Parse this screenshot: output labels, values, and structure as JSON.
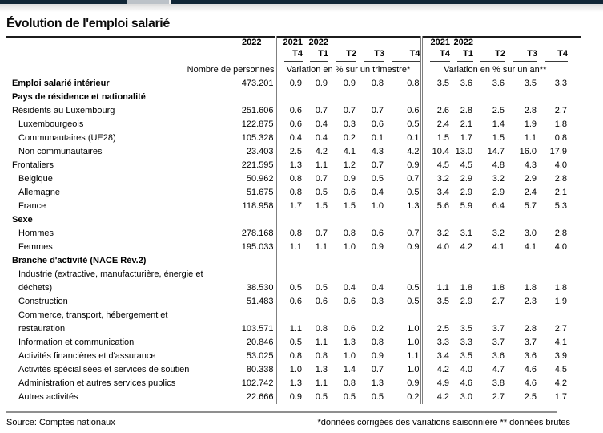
{
  "window": {
    "topbar": {
      "navy_color": "#102636",
      "gray_segment_color": "#bcc2c8"
    }
  },
  "page": {
    "title": "Évolution de l'emploi salarié"
  },
  "table": {
    "first_col": {
      "year": "2022",
      "caption": "Nombre de personnes"
    },
    "group_trimestre": {
      "years": [
        "2021",
        "2022"
      ],
      "quarters": [
        "T4",
        "T1",
        "T2",
        "T3",
        "T4"
      ],
      "caption": "Variation en % sur un trimestre*"
    },
    "group_an": {
      "years": [
        "2021",
        "2022"
      ],
      "quarters": [
        "T4",
        "T1",
        "T2",
        "T3",
        "T4"
      ],
      "caption": "Variation en % sur un an**"
    },
    "rows": [
      {
        "label": "Emploi salarié intérieur",
        "bold": true,
        "indent": 0,
        "number": "473.201",
        "q": [
          "0.9",
          "0.9",
          "0.9",
          "0.8",
          "0.8"
        ],
        "y": [
          "3.5",
          "3.6",
          "3.6",
          "3.5",
          "3.3"
        ]
      },
      {
        "label": "Pays de résidence et nationalité",
        "bold": true,
        "indent": 0
      },
      {
        "label": "Résidents au Luxembourg",
        "indent": 0,
        "number": "251.606",
        "q": [
          "0.6",
          "0.7",
          "0.7",
          "0.7",
          "0.6"
        ],
        "y": [
          "2.6",
          "2.8",
          "2.5",
          "2.8",
          "2.7"
        ]
      },
      {
        "label": "Luxembourgeois",
        "indent": 1,
        "number": "122.875",
        "q": [
          "0.6",
          "0.4",
          "0.3",
          "0.6",
          "0.5"
        ],
        "y": [
          "2.4",
          "2.1",
          "1.4",
          "1.9",
          "1.8"
        ]
      },
      {
        "label": "Communautaires (UE28)",
        "indent": 1,
        "number": "105.328",
        "q": [
          "0.4",
          "0.4",
          "0.2",
          "0.1",
          "0.1"
        ],
        "y": [
          "1.5",
          "1.7",
          "1.5",
          "1.1",
          "0.8"
        ]
      },
      {
        "label": "Non communautaires",
        "indent": 1,
        "number": "23.403",
        "q": [
          "2.5",
          "4.2",
          "4.1",
          "4.3",
          "4.2"
        ],
        "y": [
          "10.4",
          "13.0",
          "14.7",
          "16.0",
          "17.9"
        ]
      },
      {
        "label": "Frontaliers",
        "indent": 0,
        "number": "221.595",
        "q": [
          "1.3",
          "1.1",
          "1.2",
          "0.7",
          "0.9"
        ],
        "y": [
          "4.5",
          "4.5",
          "4.8",
          "4.3",
          "4.0"
        ]
      },
      {
        "label": "Belgique",
        "indent": 1,
        "number": "50.962",
        "q": [
          "0.8",
          "0.7",
          "0.9",
          "0.5",
          "0.7"
        ],
        "y": [
          "3.2",
          "2.9",
          "3.2",
          "2.9",
          "2.8"
        ]
      },
      {
        "label": "Allemagne",
        "indent": 1,
        "number": "51.675",
        "q": [
          "0.8",
          "0.5",
          "0.6",
          "0.4",
          "0.5"
        ],
        "y": [
          "3.4",
          "2.9",
          "2.9",
          "2.4",
          "2.1"
        ]
      },
      {
        "label": "France",
        "indent": 1,
        "number": "118.958",
        "q": [
          "1.7",
          "1.5",
          "1.5",
          "1.0",
          "1.3"
        ],
        "y": [
          "5.6",
          "5.9",
          "6.4",
          "5.7",
          "5.3"
        ]
      },
      {
        "label": "Sexe",
        "bold": true,
        "indent": 0
      },
      {
        "label": "Hommes",
        "indent": 1,
        "number": "278.168",
        "q": [
          "0.8",
          "0.7",
          "0.8",
          "0.6",
          "0.7"
        ],
        "y": [
          "3.2",
          "3.1",
          "3.2",
          "3.0",
          "2.8"
        ]
      },
      {
        "label": "Femmes",
        "indent": 1,
        "number": "195.033",
        "q": [
          "1.1",
          "1.1",
          "1.0",
          "0.9",
          "0.9"
        ],
        "y": [
          "4.0",
          "4.2",
          "4.1",
          "4.1",
          "4.0"
        ]
      },
      {
        "label": "Branche d'activité (NACE Rév.2)",
        "bold": true,
        "indent": 0
      },
      {
        "label": "Industrie (extractive, manufacturière, énergie et",
        "indent": 1,
        "cont": true
      },
      {
        "label": "déchets)",
        "indent": 1,
        "number": "38.530",
        "q": [
          "0.5",
          "0.5",
          "0.4",
          "0.4",
          "0.5"
        ],
        "y": [
          "1.1",
          "1.8",
          "1.8",
          "1.8",
          "1.8"
        ]
      },
      {
        "label": "Construction",
        "indent": 1,
        "number": "51.483",
        "q": [
          "0.6",
          "0.6",
          "0.6",
          "0.3",
          "0.5"
        ],
        "y": [
          "3.5",
          "2.9",
          "2.7",
          "2.3",
          "1.9"
        ]
      },
      {
        "label": "Commerce, transport, hébergement et",
        "indent": 1,
        "cont": true
      },
      {
        "label": "restauration",
        "indent": 1,
        "number": "103.571",
        "q": [
          "1.1",
          "0.8",
          "0.6",
          "0.2",
          "1.0"
        ],
        "y": [
          "2.5",
          "3.5",
          "3.7",
          "2.8",
          "2.7"
        ]
      },
      {
        "label": "Information et communication",
        "indent": 1,
        "number": "20.846",
        "q": [
          "0.5",
          "1.1",
          "1.3",
          "0.8",
          "1.0"
        ],
        "y": [
          "3.3",
          "3.3",
          "3.7",
          "3.7",
          "4.1"
        ]
      },
      {
        "label": "Activités financières et d'assurance",
        "indent": 1,
        "number": "53.025",
        "q": [
          "0.8",
          "0.8",
          "1.0",
          "0.9",
          "1.1"
        ],
        "y": [
          "3.4",
          "3.5",
          "3.6",
          "3.6",
          "3.9"
        ]
      },
      {
        "label": "Activités spécialisées et services de soutien",
        "indent": 1,
        "number": "80.338",
        "q": [
          "1.0",
          "1.3",
          "1.4",
          "0.7",
          "1.0"
        ],
        "y": [
          "4.2",
          "4.0",
          "4.7",
          "4.6",
          "4.5"
        ]
      },
      {
        "label": "Administration et autres services publics",
        "indent": 1,
        "number": "102.742",
        "q": [
          "1.3",
          "1.1",
          "0.8",
          "1.3",
          "0.9"
        ],
        "y": [
          "4.9",
          "4.6",
          "3.8",
          "4.6",
          "4.2"
        ]
      },
      {
        "label": "Autres activités",
        "indent": 1,
        "number": "22.666",
        "q": [
          "0.9",
          "0.5",
          "0.5",
          "0.5",
          "0.2"
        ],
        "y": [
          "4.2",
          "3.0",
          "2.7",
          "2.5",
          "1.7"
        ]
      }
    ]
  },
  "footer": {
    "source": "Source: Comptes nationaux",
    "note": "*données corrigées des variations saisonnière ** données brutes"
  }
}
